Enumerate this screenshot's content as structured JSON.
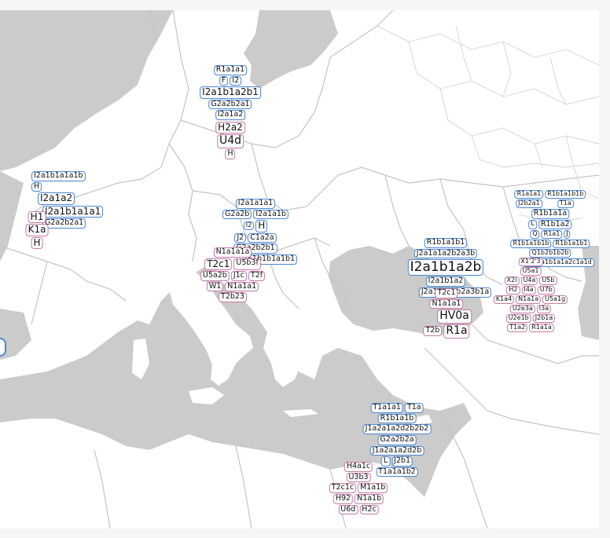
{
  "colors": {
    "paternal": "#4a86d0",
    "maternal": "#c27aa4",
    "sea": "#cbcbcb",
    "border": "#c4c4c4"
  },
  "clusters": {
    "scandinavia": {
      "m": [
        "R1a1a1",
        "F",
        "I2",
        "I2a1b1a2b1",
        "G2a2b2a1",
        "I2a1a2"
      ],
      "f": [
        "H2a2",
        "U4d",
        "H"
      ]
    },
    "westeurope": {
      "m": [
        "I2a1b1a1a1b",
        "H",
        "I2a1a2",
        "I2a1b1a1a1",
        "G2a2b2a1"
      ],
      "f": [
        "H1",
        "K1a",
        "H"
      ]
    },
    "hungary": {
      "m": [
        "I2a1a1a1",
        "G2a2b",
        "I2a1a1b",
        "I2",
        "H",
        "J2",
        "C1a2a",
        "G2a2b2b1",
        "E1b1b1a1b1"
      ]
    },
    "balkan": {
      "f": [
        "N1a1a1a",
        "T2c1",
        "U5b3f",
        "U5a2b",
        "J1c",
        "T2f",
        "W1",
        "N1a1a1",
        "T2b23"
      ]
    },
    "blacksea": {
      "m": [
        "R1b1a1b1",
        "J2a1a1a2b2a3b",
        "I2a1b1a2b",
        "I2a1b1a2",
        "J2a1a1a2b2a3b1a"
      ],
      "f": [
        "T2c1",
        "N1a1a1",
        "HV0a",
        "T2b",
        "R1a"
      ]
    },
    "russia": {
      "m": [
        "R1a1a1",
        "J2b2a1",
        "R1b1a1b1b",
        "T1a",
        "R1b1a1a",
        "L",
        "R1b1a2",
        "Q",
        "R1a1",
        "J",
        "R1b1a1b1b",
        "R1b1a1b1",
        "Q1b2b1b2b",
        "R1b1a1b1a1a2c1a1d"
      ],
      "f": [
        "X1'2'3",
        "U5a1",
        "X2i",
        "U4a",
        "U5b",
        "H2",
        "I4a",
        "U7b",
        "K1a4",
        "N1a1a",
        "U5a1g",
        "U2e3a",
        "I3a",
        "U2e1b",
        "J2b1a",
        "T1a2",
        "R1a1a"
      ]
    },
    "levant": {
      "m": [
        "T1a1a1",
        "T1a",
        "R1b1a1b",
        "J1a2a1a2d2b2b2",
        "G2a2b2a",
        "J1a2a1a2d2b",
        "L",
        "J2b1",
        "T1a1a1b2"
      ],
      "f": [
        "H4a1c",
        "U3b3",
        "T2c1c",
        "M1a1b",
        "H92",
        "N1a1b",
        "U6d",
        "H2c"
      ]
    }
  }
}
